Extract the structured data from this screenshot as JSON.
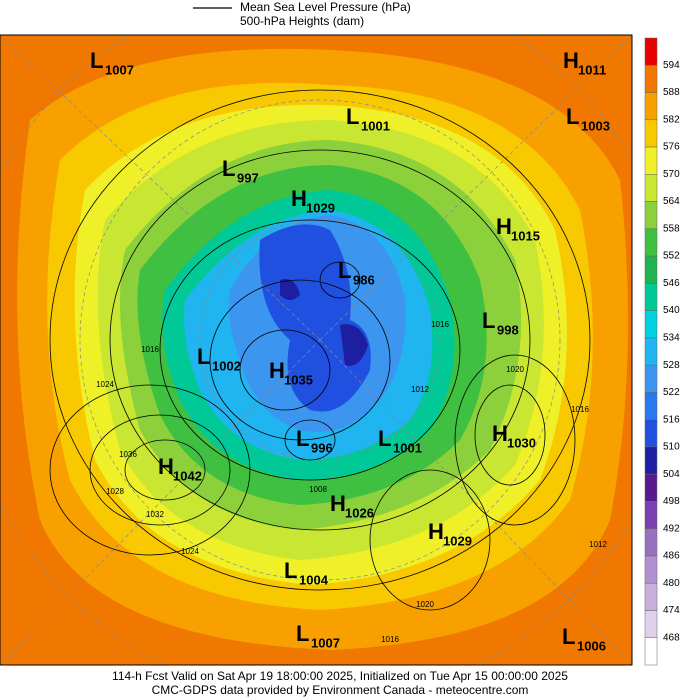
{
  "header": {
    "legend_lines": [
      "Mean Sea Level Pressure (hPa)",
      "500-hPa Heights (dam)"
    ]
  },
  "centers": [
    {
      "letter": "L",
      "value": 1007
    },
    {
      "letter": "H",
      "value": 1011
    },
    {
      "letter": "L",
      "value": 1001
    },
    {
      "letter": "L",
      "value": 1003
    },
    {
      "letter": "L",
      "value": 997
    },
    {
      "letter": "H",
      "value": 1029
    },
    {
      "letter": "H",
      "value": 1015
    },
    {
      "letter": "L",
      "value": 986
    },
    {
      "letter": "L",
      "value": 998
    },
    {
      "letter": "L",
      "value": 1002
    },
    {
      "letter": "H",
      "value": 1035
    },
    {
      "letter": "L",
      "value": 996
    },
    {
      "letter": "L",
      "value": 1001
    },
    {
      "letter": "H",
      "value": 1030
    },
    {
      "letter": "H",
      "value": 1042
    },
    {
      "letter": "H",
      "value": 1026
    },
    {
      "letter": "H",
      "value": 1029
    },
    {
      "letter": "L",
      "value": 1004
    },
    {
      "letter": "L",
      "value": 1007
    },
    {
      "letter": "L",
      "value": 1006
    }
  ],
  "contour_labels": [
    1016,
    1024,
    1036,
    1028,
    1032,
    1024,
    1020,
    1016,
    1012,
    1020,
    1016,
    1012,
    1008,
    1016
  ],
  "colorbar": {
    "ticks": [
      594,
      588,
      582,
      576,
      570,
      564,
      558,
      552,
      546,
      540,
      534,
      528,
      522,
      516,
      510,
      504,
      498,
      492,
      486,
      480,
      474,
      468
    ],
    "colors": [
      "#e80000",
      "#f07800",
      "#f8a000",
      "#f8c800",
      "#f0f028",
      "#c8e632",
      "#8cd03c",
      "#40c040",
      "#20b450",
      "#00c896",
      "#00d2e0",
      "#20b4f0",
      "#3c96f0",
      "#2878f0",
      "#2050e0",
      "#1e1ea0",
      "#5a1890",
      "#7a40b0",
      "#9870c0",
      "#b090d0",
      "#c8b0dc",
      "#e0d0ec",
      "#ffffff"
    ]
  },
  "footer": [
    "114-h Fcst Valid on Sat Apr 19 18:00:00 2025, Initialized on Tue Apr 15 00:00:00 2025",
    "CMC-GDPS data provided by Environment Canada - meteocentre.com"
  ]
}
